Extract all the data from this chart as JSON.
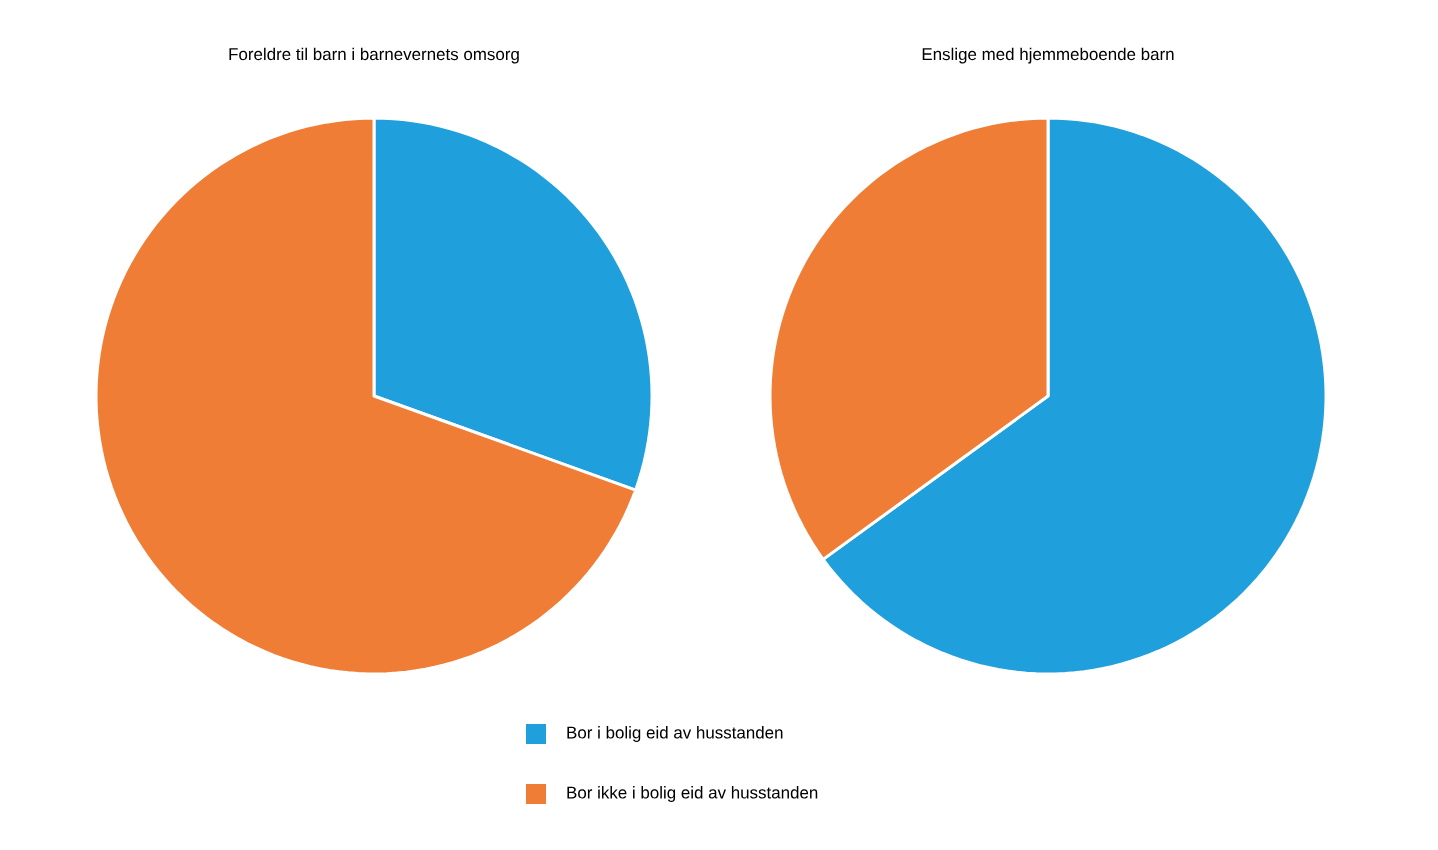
{
  "chart_data": [
    {
      "type": "pie",
      "title": "Foreldre til barn i barnevernets omsorg",
      "categories": [
        "Bor i bolig eid av husstanden",
        "Bor ikke i bolig eid av husstanden"
      ],
      "values": [
        30.5,
        69.5
      ],
      "colors": [
        "#1f9fdb",
        "#ef7d35"
      ],
      "legend": "bottom"
    },
    {
      "type": "pie",
      "title": "Enslige med hjemmeboende barn",
      "categories": [
        null,
        null
      ],
      "values": [
        65,
        35
      ],
      "colors": [
        "#1f9fdb",
        "#ef7d35"
      ],
      "legend": false
    }
  ]
}
